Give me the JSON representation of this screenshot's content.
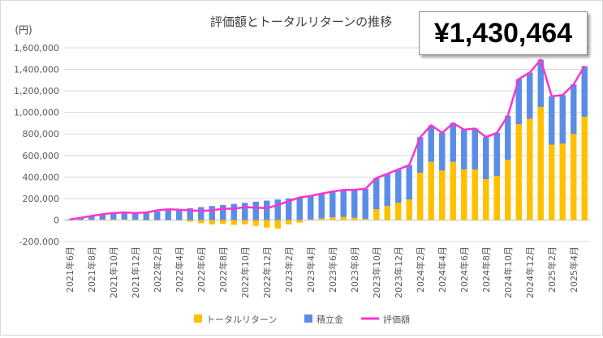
{
  "total_badge": "¥1,430,464",
  "chart_data": {
    "type": "bar",
    "title": "評価額とトータルリターンの推移",
    "ylabel": "(円)",
    "ylim": [
      -200000,
      1600000
    ],
    "y_ticks": [
      "-200,000",
      "0",
      "200,000",
      "400,000",
      "600,000",
      "800,000",
      "1,000,000",
      "1,200,000",
      "1,400,000",
      "1,600,000"
    ],
    "grid": "horizontal",
    "legend_position": "bottom",
    "categories": [
      "2021年6月",
      "2021年7月",
      "2021年8月",
      "2021年9月",
      "2021年10月",
      "2021年11月",
      "2021年12月",
      "2022年1月",
      "2022年2月",
      "2022年3月",
      "2022年4月",
      "2022年5月",
      "2022年6月",
      "2022年7月",
      "2022年8月",
      "2022年9月",
      "2022年10月",
      "2022年11月",
      "2022年12月",
      "2023年1月",
      "2023年2月",
      "2023年3月",
      "2023年4月",
      "2023年5月",
      "2023年6月",
      "2023年7月",
      "2023年8月",
      "2023年9月",
      "2023年10月",
      "2023年11月",
      "2023年12月",
      "2024年1月",
      "2024年2月",
      "2024年3月",
      "2024年4月",
      "2024年5月",
      "2024年6月",
      "2024年7月",
      "2024年8月",
      "2024年9月",
      "2024年10月",
      "2024年11月",
      "2024年12月",
      "2025年1月",
      "2025年2月",
      "2025年3月",
      "2025年4月",
      "2025年5月"
    ],
    "series": [
      {
        "name": "トータルリターン",
        "kind": "bar",
        "color": "#FFC000",
        "values": [
          0,
          1000,
          2000,
          4000,
          6000,
          5000,
          3000,
          -5000,
          -3000,
          -1000,
          -2000,
          -15000,
          -30000,
          -40000,
          -35000,
          -45000,
          -40000,
          -55000,
          -70000,
          -80000,
          -40000,
          -25000,
          5000,
          15000,
          25000,
          30000,
          20000,
          10000,
          100000,
          130000,
          160000,
          190000,
          440000,
          540000,
          460000,
          540000,
          470000,
          470000,
          380000,
          410000,
          560000,
          890000,
          940000,
          1050000,
          700000,
          710000,
          800000,
          960000
        ]
      },
      {
        "name": "積立金",
        "kind": "bar",
        "color": "#5B8CE6",
        "values": [
          5000,
          20000,
          35000,
          50000,
          60000,
          65000,
          70000,
          75000,
          80000,
          90000,
          100000,
          110000,
          120000,
          130000,
          140000,
          150000,
          160000,
          170000,
          180000,
          190000,
          200000,
          210000,
          220000,
          230000,
          240000,
          250000,
          260000,
          280000,
          290000,
          300000,
          310000,
          320000,
          330000,
          340000,
          350000,
          360000,
          370000,
          380000,
          390000,
          400000,
          410000,
          420000,
          430000,
          440000,
          450000,
          450000,
          460000,
          470000
        ]
      },
      {
        "name": "評価額",
        "kind": "line",
        "color": "#FF33CC",
        "values": [
          5000,
          21000,
          37000,
          54000,
          66000,
          70000,
          65000,
          70000,
          90000,
          100000,
          95000,
          90000,
          85000,
          90000,
          105000,
          105000,
          120000,
          115000,
          110000,
          140000,
          175000,
          210000,
          225000,
          245000,
          265000,
          280000,
          280000,
          290000,
          390000,
          430000,
          470000,
          510000,
          770000,
          880000,
          810000,
          900000,
          840000,
          850000,
          770000,
          810000,
          970000,
          1310000,
          1370000,
          1490000,
          1150000,
          1160000,
          1260000,
          1430464
        ]
      }
    ]
  }
}
